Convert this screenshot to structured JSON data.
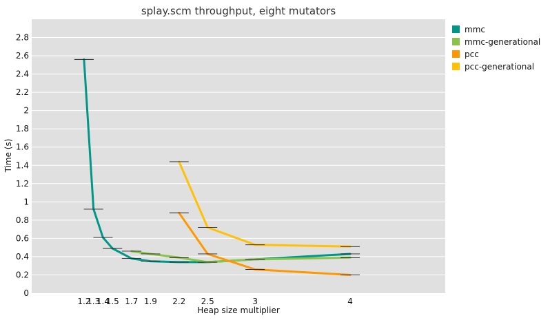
{
  "chart_data": {
    "type": "line",
    "title": "splay.scm throughput, eight mutators",
    "xlabel": "Heap size multiplier",
    "ylabel": "Time (s)",
    "xlim": [
      0.65,
      5.0
    ],
    "ylim": [
      0,
      3.0
    ],
    "x_ticks": [
      1.2,
      1.3,
      1.4,
      1.5,
      1.7,
      1.9,
      2.2,
      2.5,
      3,
      4
    ],
    "x_tick_labels": [
      "1.2",
      "1.3",
      "1.4",
      "1.5",
      "1.7",
      "1.9",
      "2.2",
      "2.5",
      "3",
      "4"
    ],
    "y_ticks": [
      0,
      0.2,
      0.4,
      0.6,
      0.8,
      1,
      1.2,
      1.4,
      1.6,
      1.8,
      2,
      2.2,
      2.4,
      2.6,
      2.8
    ],
    "y_tick_labels": [
      "0",
      "0.2",
      "0.4",
      "0.6",
      "0.8",
      "1",
      "1.2",
      "1.4",
      "1.6",
      "1.8",
      "2",
      "2.2",
      "2.4",
      "2.6",
      "2.8"
    ],
    "grid": "horizontal",
    "background": "#e0e0e0",
    "legend_position": "outside-right",
    "series": [
      {
        "name": "mmc",
        "color": "#009688",
        "x": [
          1.2,
          1.3,
          1.4,
          1.5,
          1.7,
          1.9,
          2.2,
          2.5,
          3,
          4
        ],
        "y": [
          2.56,
          0.92,
          0.61,
          0.49,
          0.38,
          0.35,
          0.34,
          0.34,
          0.37,
          0.43
        ]
      },
      {
        "name": "mmc-generational",
        "color": "#8bc34a",
        "x": [
          1.7,
          1.9,
          2.2,
          2.5,
          3,
          4
        ],
        "y": [
          0.46,
          0.43,
          0.39,
          0.34,
          0.37,
          0.39
        ]
      },
      {
        "name": "pcc",
        "color": "#ff9800",
        "x": [
          2.2,
          2.5,
          3,
          4
        ],
        "y": [
          0.88,
          0.43,
          0.26,
          0.2
        ]
      },
      {
        "name": "pcc-generational",
        "color": "#ffc107",
        "x": [
          2.2,
          2.5,
          3,
          4
        ],
        "y": [
          1.44,
          0.72,
          0.53,
          0.51
        ]
      }
    ]
  }
}
